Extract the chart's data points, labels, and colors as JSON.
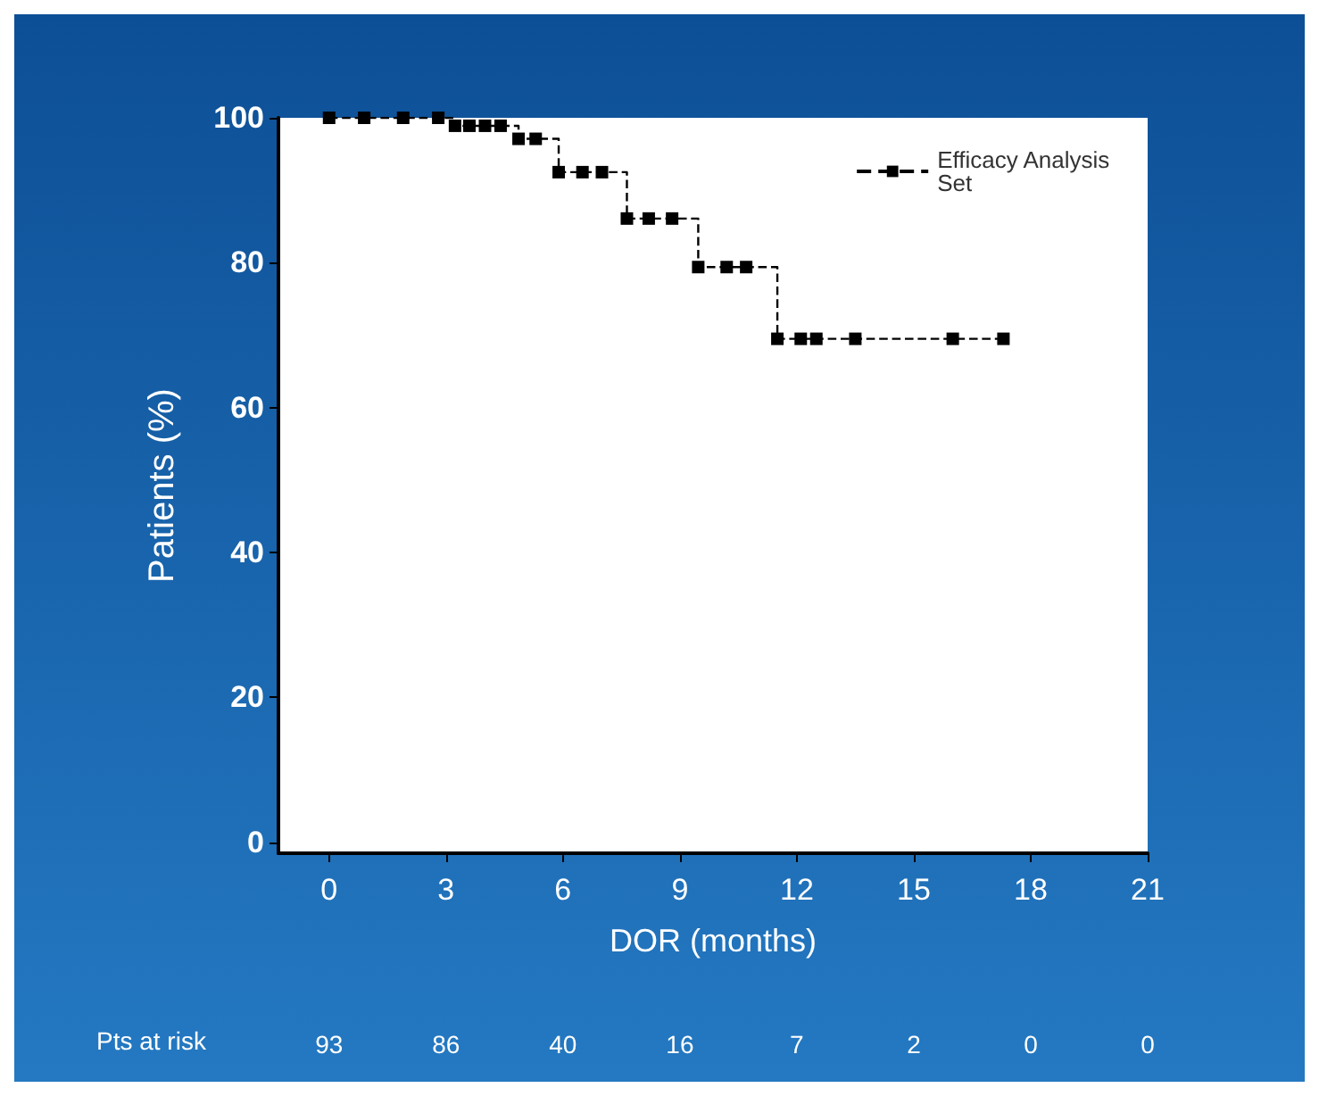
{
  "chart_data": {
    "type": "step",
    "xlabel": "DOR (months)",
    "ylabel": "Patients (%)",
    "xlim": [
      -1.3,
      21
    ],
    "xticks": [
      0,
      3,
      6,
      9,
      12,
      15,
      18,
      21
    ],
    "ylim": [
      -1.5,
      100
    ],
    "yticks": [
      0,
      20,
      40,
      60,
      80,
      100
    ],
    "series": [
      {
        "name": "Efficacy Analysis Set",
        "color": "#000000",
        "x": [
          0,
          0.9,
          1.9,
          2.8,
          3.23,
          3.6,
          4.0,
          4.4,
          4.86,
          5.3,
          5.89,
          6.5,
          7.0,
          7.64,
          8.2,
          8.8,
          9.47,
          10.2,
          10.7,
          11.5,
          12.1,
          12.5,
          13.5,
          16.0,
          17.3
        ],
        "values": [
          100,
          100,
          100,
          100,
          98.9,
          98.9,
          98.9,
          98.9,
          97.1,
          97.1,
          92.5,
          92.5,
          92.5,
          86.1,
          86.1,
          86.1,
          79.4,
          79.4,
          79.4,
          69.5,
          69.5,
          69.5,
          69.5,
          69.5,
          69.5
        ]
      }
    ],
    "marker": "square",
    "line_style": "dashed",
    "legend": "top right",
    "grid": false,
    "annotations": [
      "Pts at risk",
      "93",
      "86",
      "40",
      "16",
      "7",
      "2",
      "0",
      "0"
    ]
  }
}
